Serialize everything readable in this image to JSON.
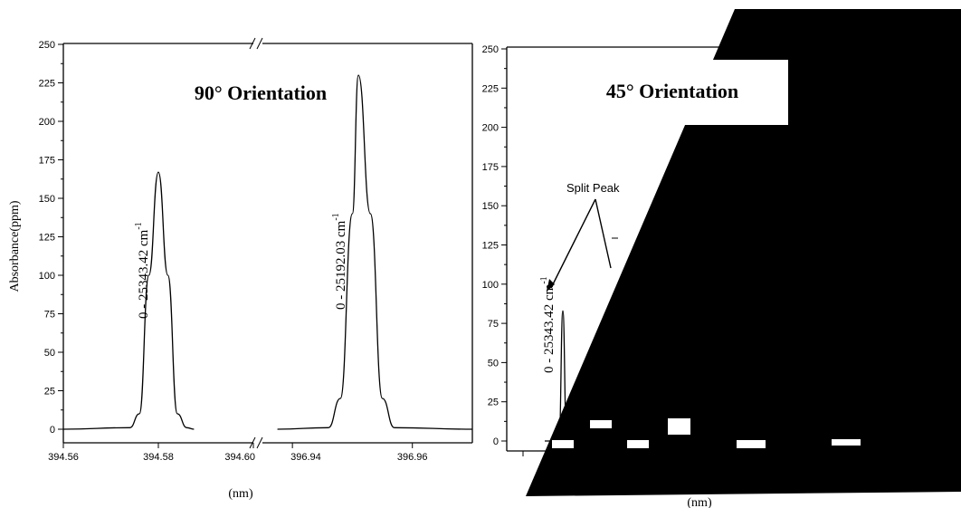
{
  "chart_data": [
    {
      "type": "line",
      "title": "90° Orientation",
      "xlabel": "(nm)",
      "ylabel": "Absorbance(ppm)",
      "ylim": [
        0,
        250
      ],
      "yticks": [
        "0",
        "25",
        "50",
        "75",
        "100",
        "125",
        "150",
        "175",
        "200",
        "225",
        "250"
      ],
      "broken_x_axis": true,
      "x_segments": [
        {
          "xlim": [
            394.56,
            394.6
          ],
          "ticks": [
            "394.56",
            "394.58",
            "394.60"
          ]
        },
        {
          "xlim": [
            396.935,
            396.97
          ],
          "ticks": [
            "396.94",
            "396.96"
          ]
        }
      ],
      "series": [
        {
          "x": [
            394.56,
            394.574,
            394.576,
            394.578,
            394.58,
            394.582,
            394.584,
            394.586,
            394.5875
          ],
          "values": [
            0,
            1,
            10,
            100,
            167,
            100,
            10,
            1,
            0
          ]
        },
        {
          "x": [
            396.9375,
            396.946,
            396.948,
            396.95,
            396.951,
            396.953,
            396.955,
            396.957,
            396.97
          ],
          "values": [
            0,
            1,
            20,
            140,
            230,
            140,
            20,
            1,
            0
          ]
        }
      ],
      "annotations": [
        {
          "text": "0 - 25343.42  cm",
          "superscript": "-1"
        },
        {
          "text": "0 - 25192.03  cm",
          "superscript": "-1"
        }
      ],
      "grid": false,
      "legend": "none"
    },
    {
      "type": "line",
      "title": "45° Orientation",
      "xlabel": "(nm)",
      "ylim": [
        0,
        250
      ],
      "yticks": [
        "0",
        "25",
        "50",
        "75",
        "100",
        "125",
        "150",
        "175",
        "200",
        "225",
        "250"
      ],
      "series": [
        {
          "x": [
            0,
            0.4,
            0.8,
            1.0,
            1.2,
            1.6,
            2.0
          ],
          "values": [
            0,
            0,
            5,
            83,
            5,
            0,
            0
          ]
        }
      ],
      "annotations": [
        {
          "text": "0 - 25343.42  cm",
          "superscript": "-1"
        },
        {
          "text": "Split Peak"
        }
      ],
      "grid": false,
      "legend": "none"
    }
  ]
}
